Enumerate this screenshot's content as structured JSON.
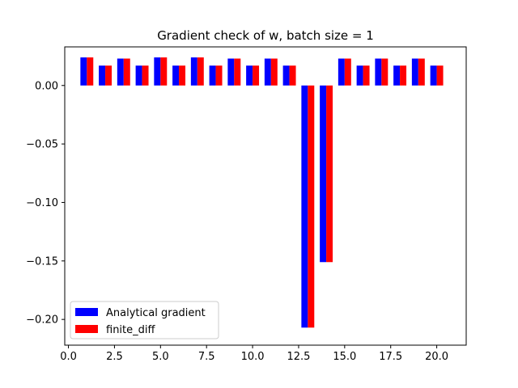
{
  "chart_data": {
    "type": "bar",
    "title": "Gradient check of w, batch size = 1",
    "xlabel": "",
    "ylabel": "",
    "xlim": [
      -0.2,
      21.6
    ],
    "ylim": [
      -0.222,
      0.033
    ],
    "x_ticks": [
      0.0,
      2.5,
      5.0,
      7.5,
      10.0,
      12.5,
      15.0,
      17.5,
      20.0
    ],
    "x_tick_labels": [
      "0.0",
      "2.5",
      "5.0",
      "7.5",
      "10.0",
      "12.5",
      "15.0",
      "17.5",
      "20.0"
    ],
    "y_ticks": [
      0.0,
      -0.05,
      -0.1,
      -0.15,
      -0.2
    ],
    "y_tick_labels": [
      "0.00",
      "−0.05",
      "−0.10",
      "−0.15",
      "−0.20"
    ],
    "grid": false,
    "legend_position": "lower-left",
    "x": [
      1,
      2,
      3,
      4,
      5,
      6,
      7,
      8,
      9,
      10,
      11,
      12,
      13,
      14,
      15,
      16,
      17,
      18,
      19,
      20
    ],
    "series": [
      {
        "name": "Analytical gradient",
        "color": "#0000ff",
        "values": [
          0.024,
          0.017,
          0.023,
          0.017,
          0.024,
          0.017,
          0.024,
          0.017,
          0.023,
          0.017,
          0.023,
          0.017,
          -0.207,
          -0.151,
          0.023,
          0.017,
          0.023,
          0.017,
          0.023,
          0.017
        ]
      },
      {
        "name": "finite_diff",
        "color": "#ff0000",
        "values": [
          0.024,
          0.017,
          0.023,
          0.017,
          0.024,
          0.017,
          0.024,
          0.017,
          0.023,
          0.017,
          0.023,
          0.017,
          -0.207,
          -0.151,
          0.023,
          0.017,
          0.023,
          0.017,
          0.023,
          0.017
        ]
      }
    ]
  }
}
